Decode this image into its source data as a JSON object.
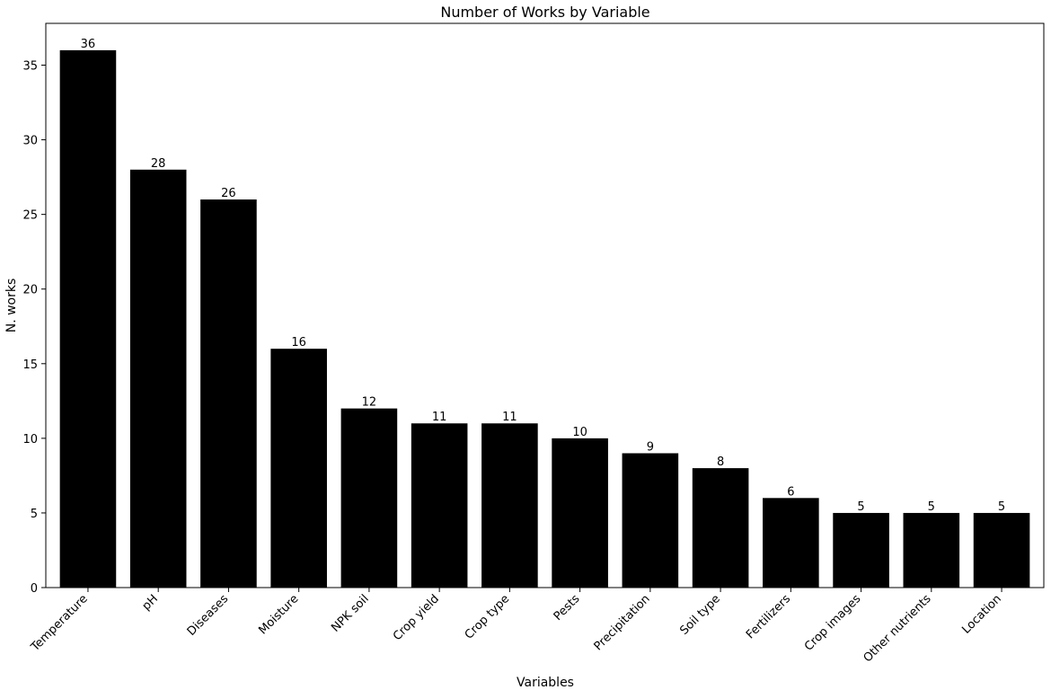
{
  "chart_data": {
    "type": "bar",
    "title": "Number of Works by Variable",
    "xlabel": "Variables",
    "ylabel": "N. works",
    "categories": [
      "Temperature",
      "pH",
      "Diseases",
      "Moisture",
      "NPK soil",
      "Crop yield",
      "Crop type",
      "Pests",
      "Precipitation",
      "Soil type",
      "Fertilizers",
      "Crop images",
      "Other nutrients",
      "Location"
    ],
    "values": [
      36,
      28,
      26,
      16,
      12,
      11,
      11,
      10,
      9,
      8,
      6,
      5,
      5,
      5
    ],
    "ylim": [
      0,
      37.8
    ],
    "yticks": [
      0,
      5,
      10,
      15,
      20,
      25,
      30,
      35
    ],
    "grid": false,
    "bar_color": "#000000",
    "data_labels": true
  }
}
